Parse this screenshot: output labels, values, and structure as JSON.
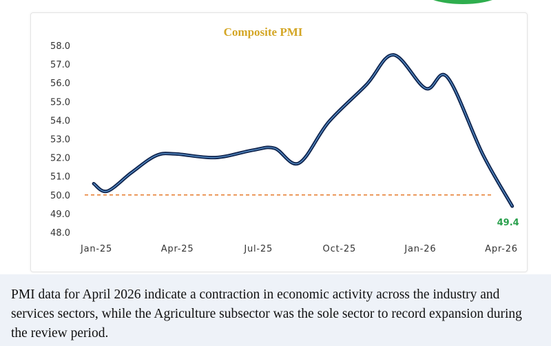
{
  "chart_data": {
    "type": "line",
    "title": "Composite PMI",
    "xlabel": "",
    "ylabel": "",
    "ylim": [
      48.0,
      58.0
    ],
    "y_ticks": [
      "48.0",
      "49.0",
      "50.0",
      "51.0",
      "52.0",
      "53.0",
      "54.0",
      "55.0",
      "56.0",
      "57.0",
      "58.0"
    ],
    "x_ticks": [
      "Jan-25",
      "Apr-25",
      "Jul-25",
      "Oct-25",
      "Jan-26",
      "Apr-26"
    ],
    "x_tick_months": [
      1,
      4,
      7,
      10,
      13,
      16
    ],
    "series": [
      {
        "name": "Composite PMI",
        "months": [
          0.9,
          1.4,
          2.3,
          3.2,
          3.9,
          5.4,
          6.8,
          7.6,
          8.5,
          9.6,
          11.0,
          12.0,
          13.2,
          14.0,
          15.3,
          16.4
        ],
        "values": [
          50.6,
          50.2,
          51.2,
          52.1,
          52.2,
          52.0,
          52.4,
          52.5,
          51.7,
          53.9,
          55.9,
          57.5,
          55.7,
          56.3,
          52.2,
          49.4
        ]
      }
    ],
    "reference_line": {
      "value": 50.0,
      "color": "#e8833a"
    },
    "last_value_label": "49.4",
    "colors": {
      "line": "#10254f",
      "line_highlight": "#5b95cf",
      "title": "#d4a625",
      "label": "#2aa04d",
      "axis_text": "#333333"
    }
  },
  "caption": {
    "text": "PMI data for April 2026 indicate a contraction in economic activity across the industry and services sectors, while the Agriculture subsector was the sole sector to record expansion during the review period."
  }
}
